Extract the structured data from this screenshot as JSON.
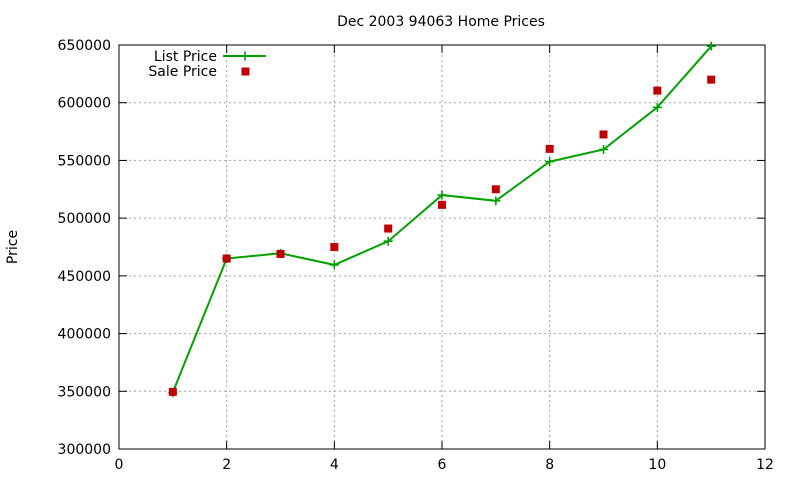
{
  "chart_data": {
    "type": "line",
    "title": "Dec 2003 94063 Home Prices",
    "xlabel": "",
    "ylabel": "Price",
    "xlim": [
      0,
      12
    ],
    "ylim": [
      300000,
      650000
    ],
    "xticks": [
      0,
      2,
      4,
      6,
      8,
      10,
      12
    ],
    "yticks": [
      300000,
      350000,
      400000,
      450000,
      500000,
      550000,
      600000,
      650000
    ],
    "grid": true,
    "legend": "top-left",
    "series": [
      {
        "name": "List Price",
        "style": "line+plus-markers",
        "color": "#00a000",
        "x": [
          1,
          2,
          3,
          4,
          5,
          6,
          7,
          8,
          9,
          10,
          11
        ],
        "y": [
          349000,
          465000,
          469500,
          459500,
          480000,
          520000,
          515000,
          549000,
          559500,
          596000,
          649000
        ]
      },
      {
        "name": "Sale Price",
        "style": "square-markers",
        "color": "#c00000",
        "x": [
          1,
          2,
          3,
          4,
          5,
          6,
          7,
          8,
          9,
          10,
          11
        ],
        "y": [
          349500,
          465000,
          469000,
          475000,
          491000,
          511500,
          525000,
          560000,
          572500,
          610500,
          620000
        ]
      }
    ]
  }
}
